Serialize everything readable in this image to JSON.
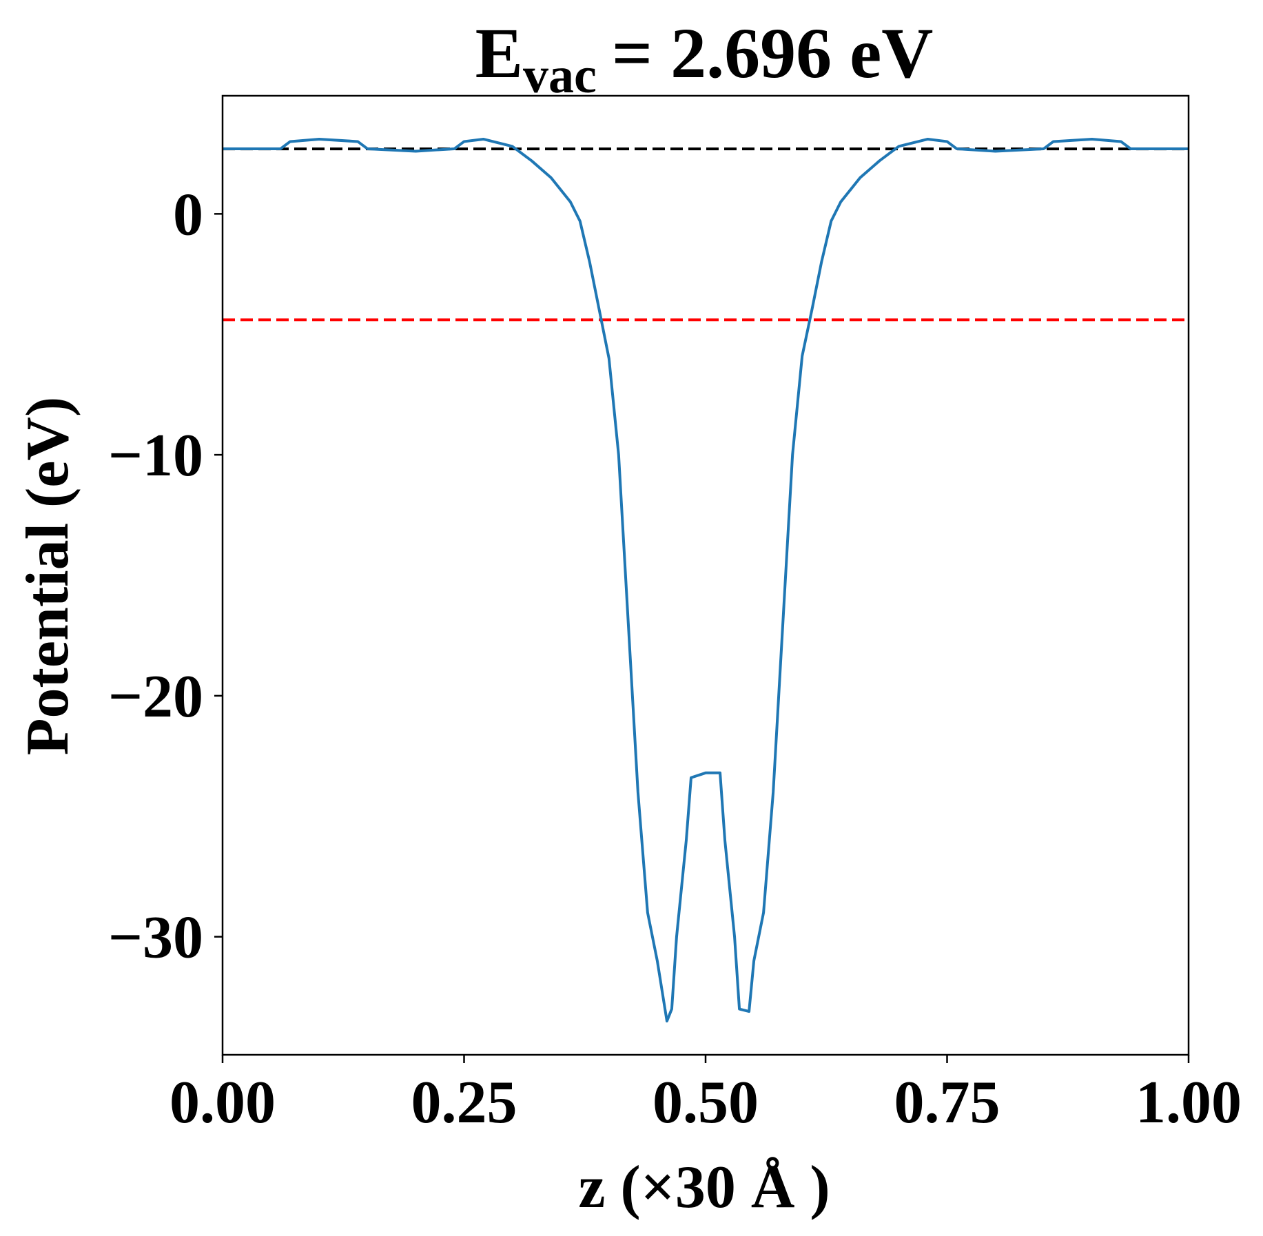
{
  "chart_data": {
    "type": "line",
    "title": {
      "main": "E",
      "sub": "vac",
      "rest": "= 2.696 eV"
    },
    "x_label": "z (×30 Å )",
    "y_label": "Potential (eV)",
    "xlim": [
      0,
      1
    ],
    "ylim": [
      -34.9,
      4.9
    ],
    "xticks": [
      {
        "value": 0,
        "label": "0.00"
      },
      {
        "value": 0.25,
        "label": "0.25"
      },
      {
        "value": 0.5,
        "label": "0.50"
      },
      {
        "value": 0.75,
        "label": "0.75"
      },
      {
        "value": 1,
        "label": "1.00"
      }
    ],
    "yticks": [
      0,
      {
        "value": -10,
        "label": "−10"
      },
      {
        "value": -20,
        "label": "−20"
      },
      {
        "value": -30,
        "label": "−30"
      }
    ],
    "grid": false,
    "hlines": [
      {
        "value": 2.696,
        "color": "#000000"
      },
      {
        "value": -4.4,
        "color": "#ff0000"
      }
    ],
    "x": [
      0,
      0.06,
      0.07,
      0.1,
      0.14,
      0.15,
      0.2,
      0.24,
      0.25,
      0.27,
      0.3,
      0.32,
      0.34,
      0.36,
      0.37,
      0.38,
      0.39,
      0.4,
      0.41,
      0.42,
      0.43,
      0.44,
      0.45,
      0.46,
      0.465,
      0.47,
      0.48,
      0.485,
      0.5,
      0.515,
      0.52,
      0.53,
      0.535,
      0.545,
      0.55,
      0.56,
      0.57,
      0.58,
      0.59,
      0.6,
      0.61,
      0.62,
      0.63,
      0.64,
      0.66,
      0.68,
      0.7,
      0.73,
      0.75,
      0.76,
      0.8,
      0.85,
      0.86,
      0.9,
      0.93,
      0.94,
      1.0
    ],
    "series": [
      {
        "color": "#1f77b4",
        "values": [
          2.7,
          2.7,
          3.0,
          3.1,
          3.0,
          2.7,
          2.6,
          2.7,
          3.0,
          3.1,
          2.8,
          2.2,
          1.5,
          0.5,
          -0.3,
          -2.0,
          -4.0,
          -6.0,
          -10.0,
          -17.0,
          -24.0,
          -29.0,
          -31.0,
          -33.5,
          -33.0,
          -30.0,
          -26.0,
          -23.4,
          -23.2,
          -23.2,
          -26.0,
          -30.0,
          -33.0,
          -33.1,
          -31.0,
          -29.0,
          -24.0,
          -17.0,
          -10.0,
          -5.9,
          -4.0,
          -2.0,
          -0.3,
          0.5,
          1.5,
          2.2,
          2.8,
          3.1,
          3.0,
          2.7,
          2.6,
          2.7,
          3.0,
          3.1,
          3.0,
          2.7,
          2.7
        ]
      }
    ]
  }
}
